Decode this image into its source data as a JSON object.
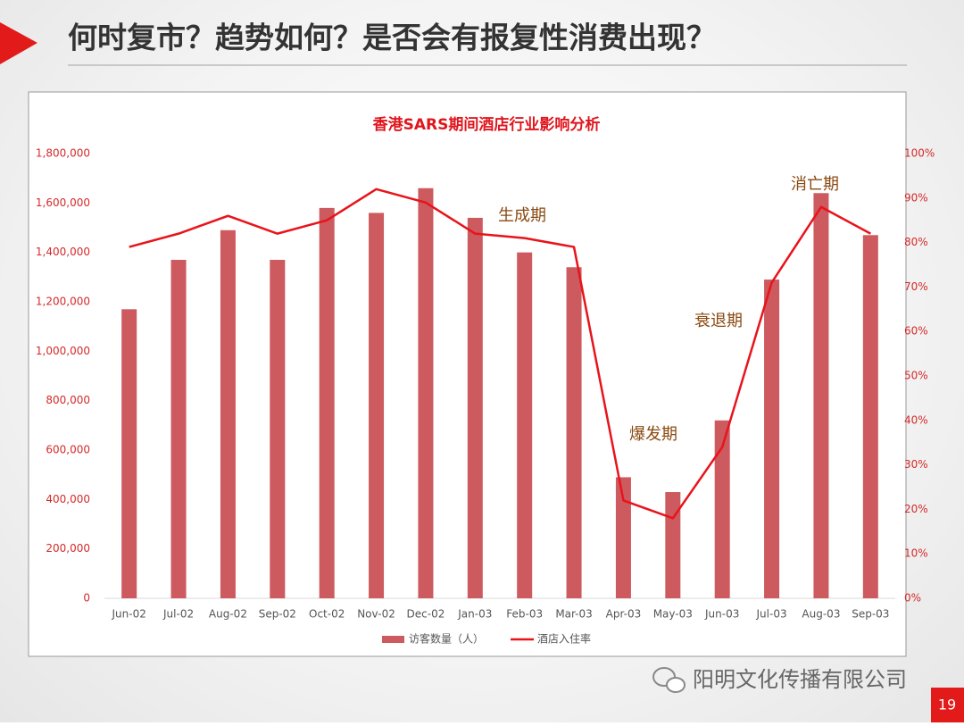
{
  "header": {
    "title": "何时复市？趋势如何？是否会有报复性消费出现？"
  },
  "chart_data": {
    "type": "bar",
    "title": "香港SARS期间酒店行业影响分析",
    "categories": [
      "Jun-02",
      "Jul-02",
      "Aug-02",
      "Sep-02",
      "Oct-02",
      "Nov-02",
      "Dec-02",
      "Jan-03",
      "Feb-03",
      "Mar-03",
      "Apr-03",
      "May-03",
      "Jun-03",
      "Jul-03",
      "Aug-03",
      "Sep-03"
    ],
    "series": [
      {
        "name": "访客数量（人）",
        "type": "bar",
        "color": "#cc5a5e",
        "values": [
          1170000,
          1370000,
          1490000,
          1370000,
          1580000,
          1560000,
          1660000,
          1540000,
          1400000,
          1340000,
          490000,
          430000,
          720000,
          1290000,
          1640000,
          1470000
        ]
      },
      {
        "name": "酒店入住率",
        "type": "line",
        "axis": "y2",
        "color": "#e8141b",
        "values": [
          79,
          82,
          86,
          82,
          85,
          92,
          89,
          82,
          81,
          79,
          22,
          18,
          34,
          71,
          88,
          82
        ]
      }
    ],
    "ylim": [
      0,
      1800000
    ],
    "yticks": [
      0,
      {
        "value": 200000,
        "label": "200,000"
      },
      {
        "value": 400000,
        "label": "400,000"
      },
      {
        "value": 600000,
        "label": "600,000"
      },
      {
        "value": 800000,
        "label": "800,000"
      },
      {
        "value": 1000000,
        "label": "1,000,000"
      },
      {
        "value": 1200000,
        "label": "1,200,000"
      },
      {
        "value": 1400000,
        "label": "1,400,000"
      },
      {
        "value": 1600000,
        "label": "1,600,000"
      },
      {
        "value": 1800000,
        "label": "1,800,000"
      }
    ],
    "y2lim": [
      0,
      100
    ],
    "y2ticks": [
      {
        "value": 0,
        "label": "0%"
      },
      {
        "value": 10,
        "label": "10%"
      },
      {
        "value": 20,
        "label": "20%"
      },
      {
        "value": 30,
        "label": "30%"
      },
      {
        "value": 40,
        "label": "40%"
      },
      {
        "value": 50,
        "label": "50%"
      },
      {
        "value": 60,
        "label": "60%"
      },
      {
        "value": 70,
        "label": "70%"
      },
      {
        "value": 80,
        "label": "80%"
      },
      {
        "value": 90,
        "label": "90%"
      },
      {
        "value": 100,
        "label": "100%"
      }
    ],
    "annotations": [
      "生成期",
      "爆发期",
      "衰退期",
      "消亡期"
    ],
    "legend": "bottom",
    "grid": false
  },
  "footer": {
    "watermark": "阳明文化传播有限公司",
    "page": "19"
  }
}
